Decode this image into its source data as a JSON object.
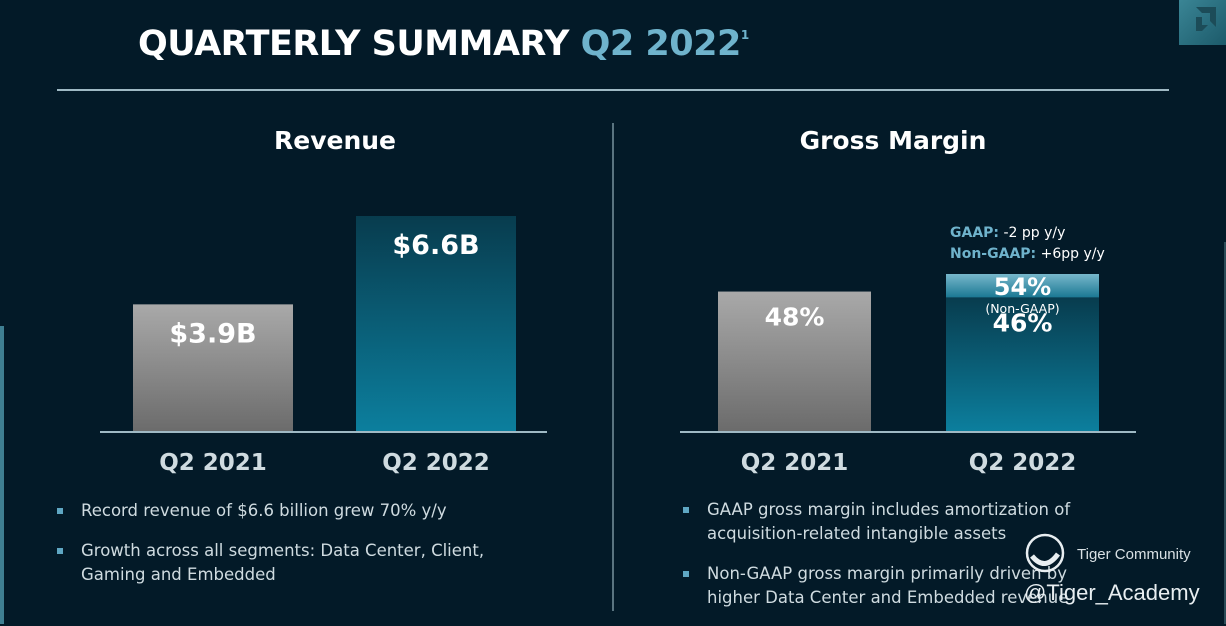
{
  "title": {
    "main": "QUARTERLY SUMMARY",
    "highlight": "Q2 2022",
    "footnote": "1"
  },
  "logo": {
    "icon": "amd-arrow-logo-icon"
  },
  "colors": {
    "background": "#031a28",
    "accent": "#6fb3cc",
    "bar_gray_top": "#a9a9a9",
    "bar_gray_bottom": "#6b6b6b",
    "bar_teal_top": "#083c4e",
    "bar_teal_bottom": "#0c7f9e",
    "bar_nongaap_top": "#77b7cb",
    "bar_nongaap_bottom": "#1b7893",
    "bullet": "#5fa7c3"
  },
  "chart_data": [
    {
      "type": "bar",
      "title": "Revenue",
      "categories": [
        "Q2 2021",
        "Q2 2022"
      ],
      "values": [
        3.9,
        6.6
      ],
      "data_labels": [
        "$3.9B",
        "$6.6B"
      ],
      "unit": "$B",
      "xlabel": "",
      "ylabel": "",
      "ylim": [
        0,
        6.6
      ],
      "grid": false
    },
    {
      "type": "bar",
      "title": "Gross Margin",
      "categories": [
        "Q2 2021",
        "Q2 2022"
      ],
      "series": [
        {
          "name": "GAAP",
          "values": [
            48,
            46
          ],
          "data_labels": [
            "48%",
            "46%"
          ]
        },
        {
          "name": "Non-GAAP",
          "values": [
            null,
            54
          ],
          "data_labels": [
            null,
            "54%"
          ],
          "sublabel": "(Non-GAAP)"
        }
      ],
      "unit": "%",
      "xlabel": "",
      "ylabel": "",
      "ylim": [
        0,
        54
      ],
      "grid": false,
      "annotations": [
        {
          "label": "GAAP:",
          "text": "-2 pp y/y"
        },
        {
          "label": "Non-GAAP:",
          "text": "+6pp y/y"
        }
      ]
    }
  ],
  "revenue": {
    "bullets": [
      "Record revenue of $6.6 billion grew 70% y/y",
      "Growth across all segments: Data Center, Client, Gaming and Embedded"
    ]
  },
  "gross_margin": {
    "bullets": [
      "GAAP gross margin includes amortization of acquisition-related intangible assets",
      "Non-GAAP gross margin primarily driven by higher Data Center and Embedded revenue"
    ]
  },
  "watermark": {
    "top": "Tiger Community",
    "bottom": "@Tiger_Academy",
    "icon": "tiger-community-logo-icon"
  }
}
